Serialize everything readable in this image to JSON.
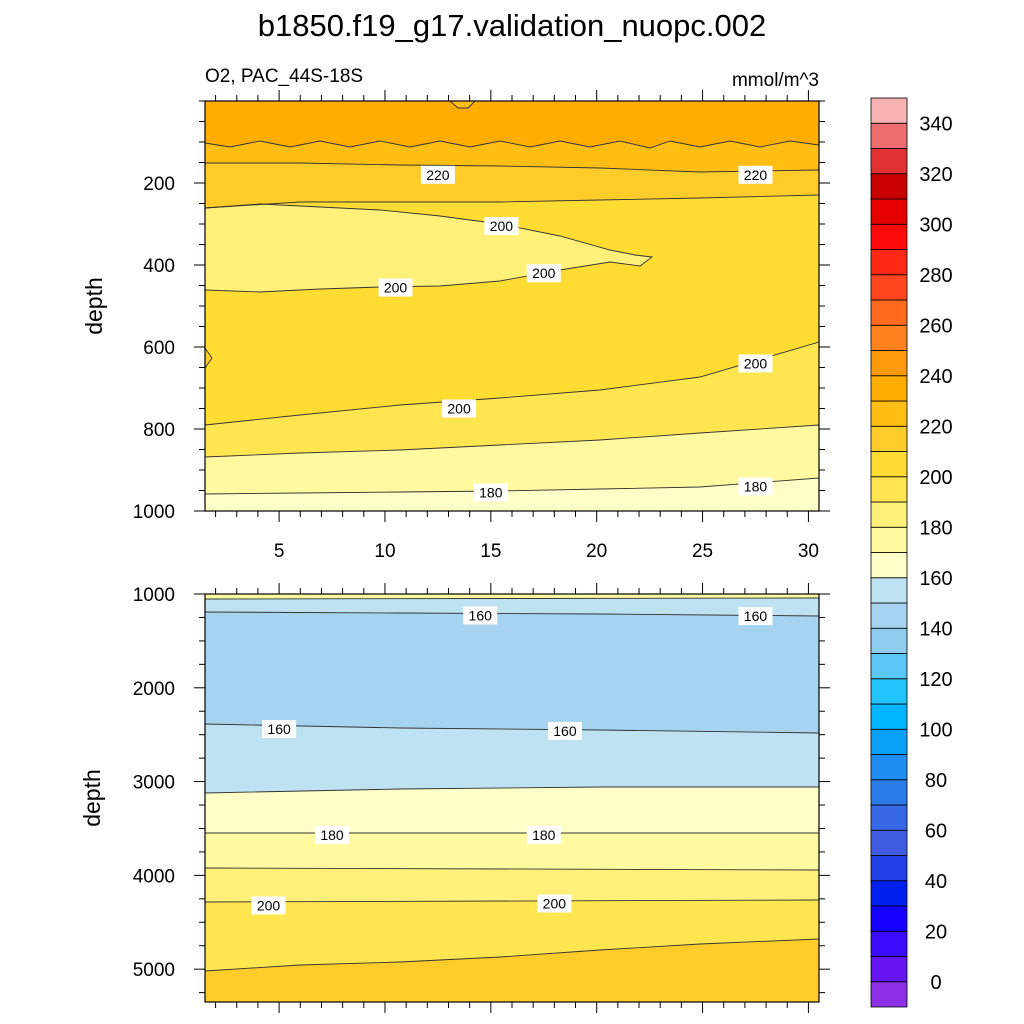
{
  "title": "b1850.f19_g17.validation_nuopc.002",
  "chart_data": [
    {
      "type": "heatmap",
      "name": "upper",
      "left_label": "O2, PAC_44S-18S",
      "right_label": "mmol/m^3",
      "ylabel": "depth",
      "xlabel": "",
      "xlim": [
        1.5,
        30.5
      ],
      "ylim": [
        1000,
        0
      ],
      "x_ticks": [
        5,
        10,
        15,
        20,
        25,
        30
      ],
      "y_ticks": [
        200,
        400,
        600,
        800,
        1000
      ],
      "contour_labels": [
        {
          "text": "220",
          "x": 12.5,
          "y": 180
        },
        {
          "text": "220",
          "x": 27.5,
          "y": 180
        },
        {
          "text": "200",
          "x": 15.5,
          "y": 305
        },
        {
          "text": "200",
          "x": 17.5,
          "y": 420
        },
        {
          "text": "200",
          "x": 10.5,
          "y": 455
        },
        {
          "text": "200",
          "x": 13.5,
          "y": 750
        },
        {
          "text": "200",
          "x": 27.5,
          "y": 640
        },
        {
          "text": "180",
          "x": 15,
          "y": 955
        },
        {
          "text": "180",
          "x": 27.5,
          "y": 940
        }
      ]
    },
    {
      "type": "heatmap",
      "name": "lower",
      "ylabel": "depth",
      "xlabel": "",
      "xlim": [
        1.5,
        30.5
      ],
      "ylim": [
        5350,
        1000
      ],
      "y_ticks": [
        1000,
        2000,
        3000,
        4000,
        5000
      ],
      "contour_labels": [
        {
          "text": "160",
          "x": 14.5,
          "y": 1230
        },
        {
          "text": "160",
          "x": 27.5,
          "y": 1235
        },
        {
          "text": "160",
          "x": 5,
          "y": 2440
        },
        {
          "text": "160",
          "x": 18.5,
          "y": 2460
        },
        {
          "text": "180",
          "x": 7.5,
          "y": 3570
        },
        {
          "text": "180",
          "x": 17.5,
          "y": 3570
        },
        {
          "text": "200",
          "x": 4.5,
          "y": 4320
        },
        {
          "text": "200",
          "x": 18,
          "y": 4300
        }
      ]
    }
  ],
  "colorbar": {
    "levels": [
      0,
      10,
      20,
      30,
      40,
      50,
      60,
      70,
      80,
      90,
      100,
      110,
      120,
      130,
      140,
      150,
      160,
      170,
      180,
      190,
      200,
      210,
      220,
      230,
      240,
      250,
      260,
      270,
      280,
      290,
      300,
      310,
      320,
      330,
      340,
      350
    ],
    "labels": [
      "0",
      "20",
      "40",
      "60",
      "80",
      "100",
      "120",
      "140",
      "160",
      "180",
      "200",
      "220",
      "240",
      "260",
      "280",
      "300",
      "320",
      "340"
    ],
    "colors": [
      "#8c30e6",
      "#6414f0",
      "#3c0aff",
      "#1400ff",
      "#0020f0",
      "#2040e6",
      "#3f5be0",
      "#3768e6",
      "#2a7ae8",
      "#1e8cf0",
      "#0aa0f8",
      "#00b4ff",
      "#20c4fa",
      "#5ac6f6",
      "#8ecdf0",
      "#a6d4f0",
      "#bee2f2",
      "#ffffc8",
      "#fffaa0",
      "#fff07a",
      "#ffe650",
      "#ffdc32",
      "#ffcc2a",
      "#ffbe14",
      "#ffae00",
      "#ff9a0a",
      "#ff821e",
      "#ff6a1e",
      "#ff461e",
      "#ff2814",
      "#ff0a0a",
      "#e60000",
      "#c80000",
      "#e03232",
      "#ec6e6e",
      "#f7b2b2"
    ]
  }
}
